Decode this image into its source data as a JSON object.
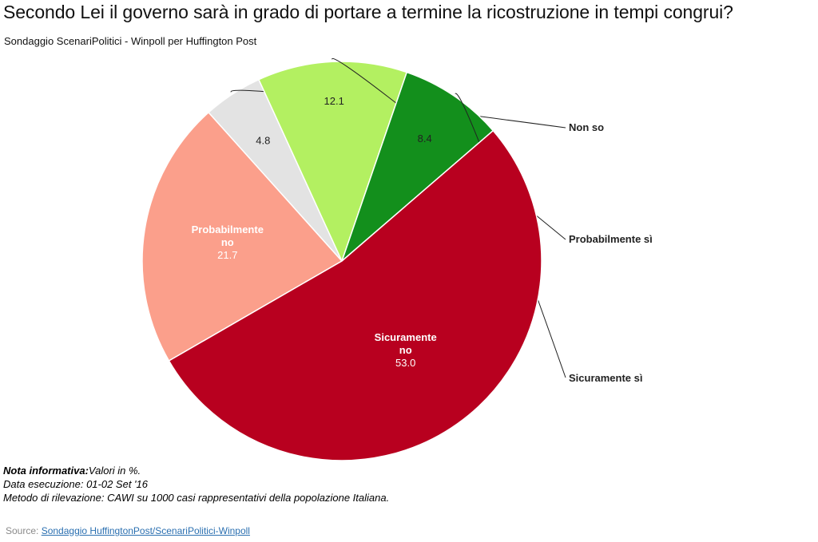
{
  "chart_data": {
    "type": "pie",
    "title": "Secondo Lei il governo sarà in grado di portare a termine la ricostruzione in tempi congrui?",
    "subtitle": "Sondaggio ScenariPolitici - Winpoll per Huffington Post",
    "unit": "%",
    "slices": [
      {
        "label": "Probabilmente\nno",
        "value": 21.7,
        "color": "#fb9f8b",
        "label_inside": true
      },
      {
        "label": "Non so",
        "value": 4.8,
        "color": "#e3e3e3",
        "label_inside": false
      },
      {
        "label": "Probabilmente sì",
        "value": 12.1,
        "color": "#b3f061",
        "label_inside": false
      },
      {
        "label": "Sicuramente sì",
        "value": 8.4,
        "color": "#138f1c",
        "label_inside": false
      },
      {
        "label": "Sicuramente\nno",
        "value": 53.0,
        "color": "#b8001f",
        "label_inside": true
      }
    ]
  },
  "notes": {
    "label": "Nota informativa:",
    "values": "Valori in %.",
    "date": "Data esecuzione: 01-02 Set '16",
    "method": "Metodo di rilevazione: CAWI su 1000 casi rappresentativi della popolazione Italiana."
  },
  "source": {
    "prefix": "Source: ",
    "link_text": "Sondaggio HuffingtonPost/ScenariPolitici-Winpoll"
  }
}
